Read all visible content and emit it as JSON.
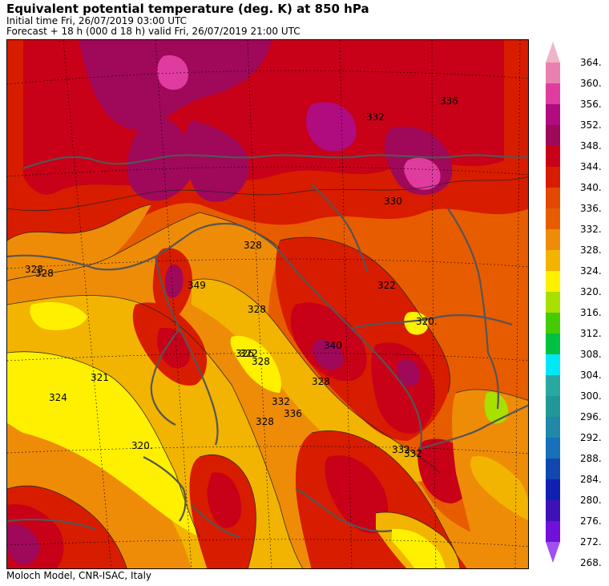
{
  "header": {
    "title": "Equivalent potential temperature (deg. K) at 850 hPa",
    "initial_time": "Initial time  Fri, 26/07/2019  03:00 UTC",
    "forecast": "Forecast  +  18 h  (000 d 18 h)  valid Fri, 26/07/2019 21:00 UTC"
  },
  "footer": {
    "credit": "Moloch Model, CNR-ISAC, Italy"
  },
  "legend": {
    "levels": [
      {
        "label": "364.",
        "color": "#f0b4c8"
      },
      {
        "label": "360.",
        "color": "#e880b0"
      },
      {
        "label": "356.",
        "color": "#e03ca0"
      },
      {
        "label": "352.",
        "color": "#b00c80"
      },
      {
        "label": "348.",
        "color": "#a0085a"
      },
      {
        "label": "344.",
        "color": "#c80018"
      },
      {
        "label": "340.",
        "color": "#d81c00"
      },
      {
        "label": "336.",
        "color": "#e24800"
      },
      {
        "label": "332.",
        "color": "#e85c00"
      },
      {
        "label": "328.",
        "color": "#ee8c08"
      },
      {
        "label": "324.",
        "color": "#f2b400"
      },
      {
        "label": "320.",
        "color": "#fff000"
      },
      {
        "label": "316.",
        "color": "#a8e000"
      },
      {
        "label": "312.",
        "color": "#44cc00"
      },
      {
        "label": "308.",
        "color": "#00c040"
      },
      {
        "label": "304.",
        "color": "#00e8f8"
      },
      {
        "label": "300.",
        "color": "#28a8a0"
      },
      {
        "label": "296.",
        "color": "#209898"
      },
      {
        "label": "292.",
        "color": "#2088a8"
      },
      {
        "label": "288.",
        "color": "#1870b8"
      },
      {
        "label": "284.",
        "color": "#1048b0"
      },
      {
        "label": "280.",
        "color": "#1020b0"
      },
      {
        "label": "276.",
        "color": "#4010b8"
      },
      {
        "label": "272.",
        "color": "#7010d8"
      },
      {
        "label": "268.",
        "color": "#a050f0"
      }
    ]
  },
  "map": {
    "contour_labels": [
      {
        "text": "328"
      },
      {
        "text": "328"
      },
      {
        "text": "324"
      },
      {
        "text": "321"
      },
      {
        "text": "320."
      },
      {
        "text": "328"
      },
      {
        "text": "322"
      },
      {
        "text": "328"
      },
      {
        "text": "336"
      },
      {
        "text": "332"
      },
      {
        "text": "328"
      },
      {
        "text": "322"
      },
      {
        "text": "320."
      },
      {
        "text": "340"
      },
      {
        "text": "332"
      },
      {
        "text": "328"
      },
      {
        "text": "336"
      },
      {
        "text": "332"
      },
      {
        "text": "349"
      },
      {
        "text": "328"
      },
      {
        "text": "332"
      },
      {
        "text": "326"
      },
      {
        "text": "330"
      }
    ]
  }
}
